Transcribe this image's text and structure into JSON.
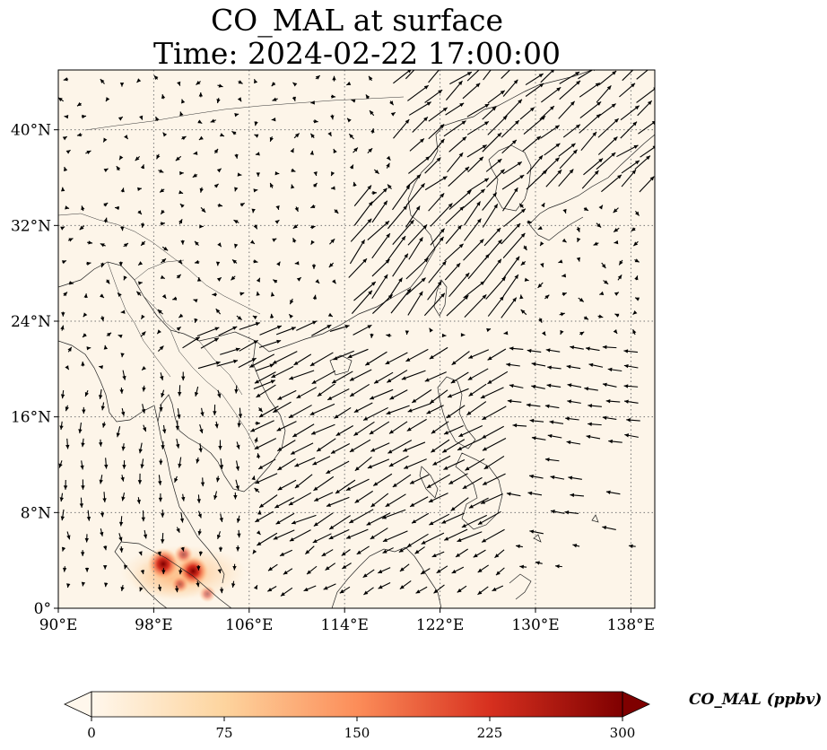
{
  "title": {
    "line1": "CO_MAL at surface",
    "line2": "Time: 2024-02-22 17:00:00"
  },
  "map": {
    "extent": {
      "lon_min": 90,
      "lon_max": 140,
      "lat_min": 0,
      "lat_max": 45
    },
    "background_color": "#fdf5e9",
    "gridlines": "dotted",
    "lat_ticks": [
      {
        "value": 0,
        "label": "0°"
      },
      {
        "value": 8,
        "label": "8°N"
      },
      {
        "value": 16,
        "label": "16°N"
      },
      {
        "value": 24,
        "label": "24°N"
      },
      {
        "value": 32,
        "label": "32°N"
      },
      {
        "value": 40,
        "label": "40°N"
      }
    ],
    "lon_ticks": [
      {
        "value": 90,
        "label": "90°E"
      },
      {
        "value": 98,
        "label": "98°E"
      },
      {
        "value": 106,
        "label": "106°E"
      },
      {
        "value": 114,
        "label": "114°E"
      },
      {
        "value": 122,
        "label": "122°E"
      },
      {
        "value": 130,
        "label": "130°E"
      },
      {
        "value": 138,
        "label": "138°E"
      }
    ],
    "hotspots": [
      {
        "lon": 98.8,
        "lat": 3.7,
        "value": 300
      },
      {
        "lon": 101.3,
        "lat": 3.1,
        "value": 280
      },
      {
        "lon": 100.5,
        "lat": 4.5,
        "value": 120
      },
      {
        "lon": 100.2,
        "lat": 2.0,
        "value": 100
      },
      {
        "lon": 102.5,
        "lat": 1.2,
        "value": 90
      }
    ],
    "wind_vectors": "present"
  },
  "colorbar": {
    "label": "CO_MAL (ppbv)",
    "ticks": [
      0,
      75,
      150,
      225,
      300
    ],
    "min": 0,
    "max": 300,
    "colormap": "OrRd",
    "colors": [
      "#fff7ec",
      "#fdd49e",
      "#fc8d59",
      "#d7301f",
      "#7f0000"
    ],
    "extend": "both"
  }
}
